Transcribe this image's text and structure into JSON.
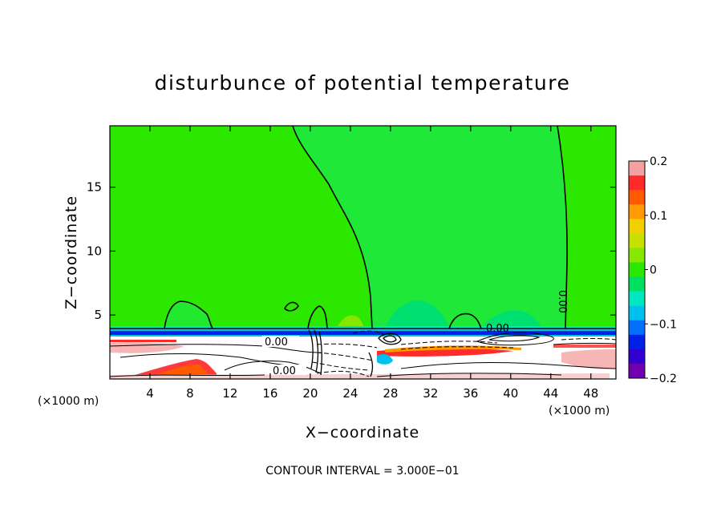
{
  "chart_data": {
    "type": "heatmap",
    "title": "disturbunce of potential temperature",
    "xlabel": "X−coordinate",
    "ylabel": "Z−coordinate",
    "x_unit": "(×1000 m)",
    "y_unit": "(×1000 m)",
    "xlim": [
      0,
      50.5
    ],
    "ylim": [
      0,
      19.8
    ],
    "x_ticks": [
      4,
      8,
      12,
      16,
      20,
      24,
      28,
      32,
      36,
      40,
      44,
      48
    ],
    "x_tick_labels": [
      "4",
      "8",
      "12",
      "16",
      "20",
      "24",
      "28",
      "32",
      "36",
      "40",
      "44",
      "48"
    ],
    "y_ticks": [
      5,
      10,
      15
    ],
    "y_tick_labels": [
      "5",
      "10",
      "15"
    ],
    "colorbar": {
      "min": -0.2,
      "max": 0.2,
      "ticks": [
        0.2,
        0.1,
        0,
        -0.1,
        -0.2
      ],
      "tick_labels": [
        "0.2",
        "0.1",
        "0",
        "−0.1",
        "−0.2"
      ],
      "colors": [
        "#f2a0a0",
        "#ff2a2a",
        "#ff5a00",
        "#ff9a00",
        "#f0d000",
        "#c8e000",
        "#86e800",
        "#2ce800",
        "#00e060",
        "#00e8c0",
        "#00c0f0",
        "#0070ff",
        "#0020e8",
        "#3000d0",
        "#7000b0"
      ]
    },
    "contour_labels": [
      "0.00",
      "0.00",
      "0.00",
      "0.00"
    ],
    "contour_interval_text": "CONTOUR INTERVAL = 3.000E−01"
  }
}
